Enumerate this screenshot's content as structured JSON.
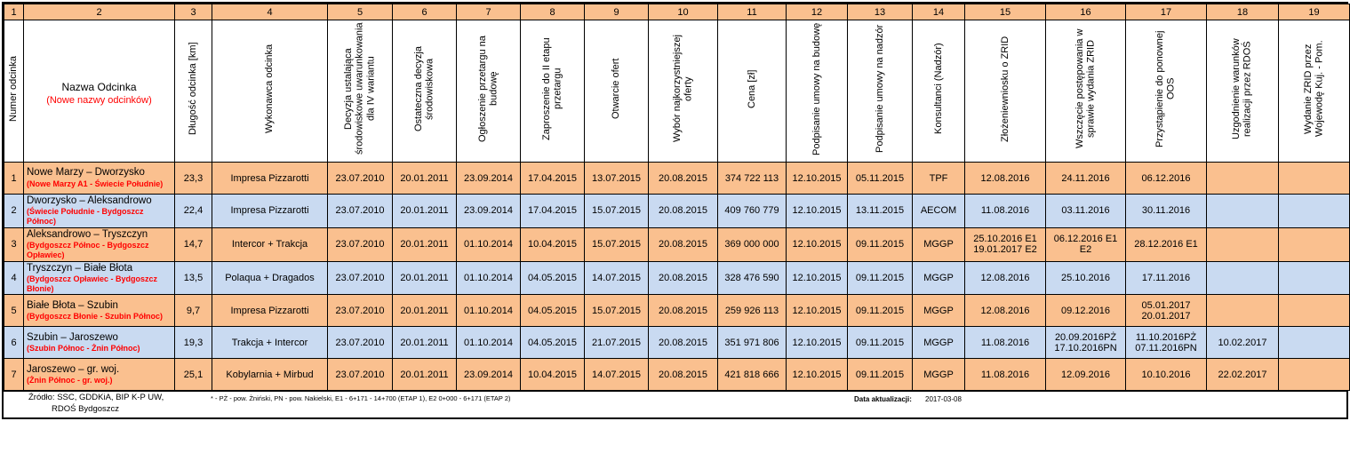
{
  "colors": {
    "orange": "#FAC08F",
    "blue": "#C9DAF1",
    "red": "#FF0000"
  },
  "chart_data": {
    "type": "table",
    "columns": [
      {
        "num": "1",
        "label": "Numer odcinka",
        "vertical": true
      },
      {
        "num": "2",
        "label": "Nazwa Odcinka",
        "sublabel": "(Nowe nazwy odcinków)",
        "vertical": false
      },
      {
        "num": "3",
        "label": "Długość odcinka [km]",
        "vertical": true
      },
      {
        "num": "4",
        "label": "Wykonawca odcinka",
        "vertical": true
      },
      {
        "num": "5",
        "label": "Decyzja ustalająca środowiskowe uwarunkowania dla IV wariantu",
        "vertical": true
      },
      {
        "num": "6",
        "label": "Ostateczna decyzja środowiskowa",
        "vertical": true
      },
      {
        "num": "7",
        "label": "Ogłoszenie przetargu na budowę",
        "vertical": true
      },
      {
        "num": "8",
        "label": "Zaproszenie do II etapu przetargu",
        "vertical": true
      },
      {
        "num": "9",
        "label": "Otwarcie ofert",
        "vertical": true
      },
      {
        "num": "10",
        "label": "Wybór najkorzystniejszej oferty",
        "vertical": true
      },
      {
        "num": "11",
        "label": "Cena [zł]",
        "vertical": true
      },
      {
        "num": "12",
        "label": "Podpisanie umowy na budowę",
        "vertical": true
      },
      {
        "num": "13",
        "label": "Podpisanie umowy na nadzór",
        "vertical": true
      },
      {
        "num": "14",
        "label": "Konsultanci (Nadzór)",
        "vertical": true
      },
      {
        "num": "15",
        "label": "Złożeniewniosku o ZRID",
        "vertical": true
      },
      {
        "num": "16",
        "label": "Wszczęcie postępowania w sprawie wydania ZRID",
        "vertical": true
      },
      {
        "num": "17",
        "label": "Przystąpienie do ponownej OOS",
        "vertical": true
      },
      {
        "num": "18",
        "label": "Uzgodnienie warunków realizacji przez RDOŚ",
        "vertical": true
      },
      {
        "num": "19",
        "label": "Wydanie ZRID przez Wojewodę Kuj. - Pom.",
        "vertical": true
      }
    ],
    "rows": [
      {
        "num": "1",
        "name": "Nowe Marzy – Dworzysko",
        "new_name": "(Nowe Marzy A1 - Świecie Południe)",
        "values": [
          "23,3",
          "Impresa Pizzarotti",
          "23.07.2010",
          "20.01.2011",
          "23.09.2014",
          "17.04.2015",
          "13.07.2015",
          "20.08.2015",
          "374 722 113",
          "12.10.2015",
          "05.11.2015",
          "TPF",
          "12.08.2016",
          "24.11.2016",
          "06.12.2016",
          "",
          ""
        ]
      },
      {
        "num": "2",
        "name": "Dworzysko – Aleksandrowo",
        "new_name": "(Świecie Południe - Bydgoszcz Północ)",
        "values": [
          "22,4",
          "Impresa Pizzarotti",
          "23.07.2010",
          "20.01.2011",
          "23.09.2014",
          "17.04.2015",
          "15.07.2015",
          "20.08.2015",
          "409 760 779",
          "12.10.2015",
          "13.11.2015",
          "AECOM",
          "11.08.2016",
          "03.11.2016",
          "30.11.2016",
          "",
          ""
        ]
      },
      {
        "num": "3",
        "name": "Aleksandrowo – Tryszczyn",
        "new_name": "(Bydgoszcz Północ - Bydgoszcz Opławiec)",
        "values": [
          "14,7",
          "Intercor + Trakcja",
          "23.07.2010",
          "20.01.2011",
          "01.10.2014",
          "10.04.2015",
          "15.07.2015",
          "20.08.2015",
          "369 000 000",
          "12.10.2015",
          "09.11.2015",
          "MGGP",
          "25.10.2016 E1\n19.01.2017 E2",
          "06.12.2016 E1\nE2",
          "28.12.2016 E1",
          "",
          ""
        ]
      },
      {
        "num": "4",
        "name": "Tryszczyn – Białe Błota",
        "new_name": "(Bydgoszcz Opławiec - Bydgoszcz Błonie)",
        "values": [
          "13,5",
          "Polaqua + Dragados",
          "23.07.2010",
          "20.01.2011",
          "01.10.2014",
          "04.05.2015",
          "14.07.2015",
          "20.08.2015",
          "328 476 590",
          "12.10.2015",
          "09.11.2015",
          "MGGP",
          "12.08.2016",
          "25.10.2016",
          "17.11.2016",
          "",
          ""
        ]
      },
      {
        "num": "5",
        "name": "Białe Błota – Szubin",
        "new_name": "(Bydgoszcz Błonie - Szubin Północ)",
        "values": [
          "9,7",
          "Impresa Pizzarotti",
          "23.07.2010",
          "20.01.2011",
          "01.10.2014",
          "04.05.2015",
          "15.07.2015",
          "20.08.2015",
          "259 926 113",
          "12.10.2015",
          "09.11.2015",
          "MGGP",
          "12.08.2016",
          "09.12.2016",
          "05.01.2017\n20.01.2017",
          "",
          ""
        ]
      },
      {
        "num": "6",
        "name": "Szubin – Jaroszewo",
        "new_name": "(Szubin Północ - Żnin Północ)",
        "values": [
          "19,3",
          "Trakcja + Intercor",
          "23.07.2010",
          "20.01.2011",
          "01.10.2014",
          "04.05.2015",
          "21.07.2015",
          "20.08.2015",
          "351 971 806",
          "12.10.2015",
          "09.11.2015",
          "MGGP",
          "11.08.2016",
          "20.09.2016PŻ\n17.10.2016PN",
          "11.10.2016PŻ\n07.11.2016PN",
          "10.02.2017",
          ""
        ]
      },
      {
        "num": "7",
        "name": "Jaroszewo – gr. woj.",
        "new_name": "(Żnin Północ - gr. woj.)",
        "values": [
          "25,1",
          "Kobylarnia + Mirbud",
          "23.07.2010",
          "20.01.2011",
          "23.09.2014",
          "10.04.2015",
          "14.07.2015",
          "20.08.2015",
          "421 818 666",
          "12.10.2015",
          "09.11.2015",
          "MGGP",
          "11.08.2016",
          "12.09.2016",
          "10.10.2016",
          "22.02.2017",
          ""
        ]
      }
    ]
  },
  "footer": {
    "source_line1": "Źródło: SSC, GDDKiA, BIP K-P UW,",
    "source_line2": "RDOŚ Bydgoszcz",
    "legend": "* - PŻ - pow. Żniński, PN - pow. Nakielski, E1 - 6+171 - 14+700 (ETAP 1), E2 0+000 - 6+171 (ETAP 2)",
    "updated_label": "Data aktualizacji:",
    "updated_date": "2017-03-08"
  }
}
